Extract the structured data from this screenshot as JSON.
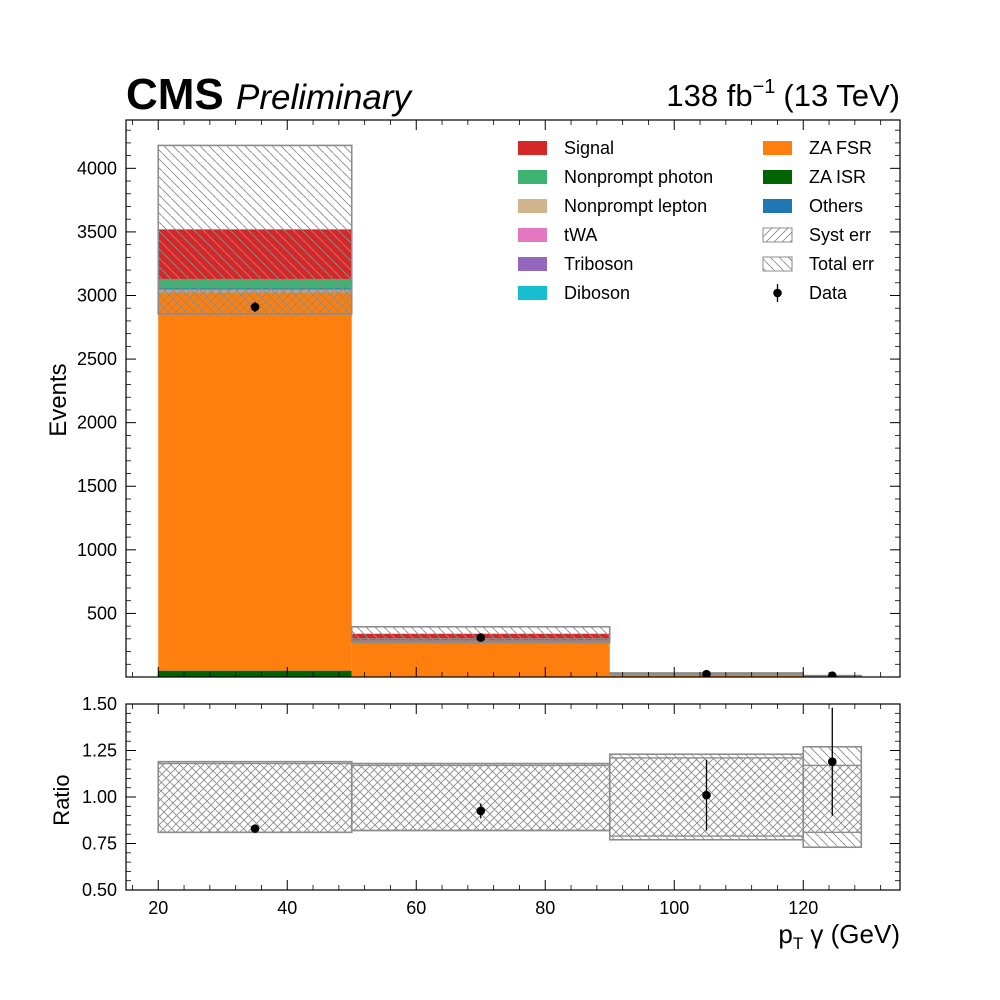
{
  "header": {
    "experiment": "CMS",
    "status": "Preliminary",
    "lumi_value": "138 fb",
    "lumi_exp": "−1",
    "energy": "(13 TeV)"
  },
  "chart_data": {
    "type": "bar",
    "stacked": true,
    "bins": [
      [
        20,
        50
      ],
      [
        50,
        90
      ],
      [
        90,
        120
      ],
      [
        120,
        129
      ]
    ],
    "xlabel_main": "p",
    "xlabel_sub": "T",
    "xlabel_rest": " γ (GeV)",
    "ylabel": "Events",
    "ylabel_ratio": "Ratio",
    "xlim": [
      15,
      135
    ],
    "ylim": [
      0,
      4380
    ],
    "ylim_ratio": [
      0.5,
      1.5
    ],
    "xticks": [
      20,
      40,
      60,
      80,
      100,
      120
    ],
    "yticks": [
      500,
      1000,
      1500,
      2000,
      2500,
      3000,
      3500,
      4000
    ],
    "yticks_ratio": [
      "0.50",
      "0.75",
      "1.00",
      "1.25",
      "1.50"
    ],
    "series": [
      {
        "name": "ZA ISR",
        "color": "#006400",
        "values": [
          50,
          2,
          0,
          0
        ]
      },
      {
        "name": "ZA FSR",
        "color": "#ff7f0e",
        "values": [
          2975,
          272,
          25,
          8
        ]
      },
      {
        "name": "Diboson",
        "color": "#17becf",
        "values": [
          5,
          1,
          0,
          0
        ]
      },
      {
        "name": "Triboson",
        "color": "#9467bd",
        "values": [
          3,
          1,
          0,
          0
        ]
      },
      {
        "name": "tWA",
        "color": "#e377c2",
        "values": [
          5,
          1,
          0,
          0
        ]
      },
      {
        "name": "Nonprompt lepton",
        "color": "#d2b48c",
        "values": [
          12,
          2,
          0,
          0
        ]
      },
      {
        "name": "Others",
        "color": "#1f77b4",
        "values": [
          5,
          1,
          0,
          0
        ]
      },
      {
        "name": "Nonprompt photon",
        "color": "#3cb371",
        "values": [
          75,
          8,
          1,
          0
        ]
      },
      {
        "name": "Signal",
        "color": "#d62728",
        "values": [
          390,
          52,
          3,
          1
        ]
      }
    ],
    "syst_band": [
      [
        2855,
        3045
      ],
      [
        270,
        300
      ],
      [
        26,
        30
      ],
      [
        8,
        10
      ]
    ],
    "total_band": [
      [
        2855,
        4180
      ],
      [
        280,
        395
      ],
      [
        22,
        32
      ],
      [
        7,
        11
      ]
    ],
    "data": {
      "x": [
        35,
        70,
        105,
        124.5
      ],
      "y": [
        2910,
        310,
        22,
        10
      ],
      "err": [
        40,
        15,
        5,
        3
      ]
    },
    "ratio": {
      "x": [
        35,
        70,
        105,
        124.5
      ],
      "y": [
        0.83,
        0.925,
        1.01,
        1.19
      ],
      "err": [
        0.015,
        0.04,
        0.19,
        0.29
      ],
      "syst_band": [
        [
          0.81,
          1.18
        ],
        [
          0.82,
          1.17
        ],
        [
          0.79,
          1.21
        ],
        [
          0.81,
          1.17
        ]
      ],
      "total_band": [
        [
          0.81,
          1.19
        ],
        [
          0.82,
          1.18
        ],
        [
          0.77,
          1.23
        ],
        [
          0.73,
          1.27
        ]
      ]
    },
    "legend": {
      "placement": "top-right",
      "col1": [
        {
          "label": "Signal",
          "kind": "fill",
          "color": "#d62728"
        },
        {
          "label": "Nonprompt photon",
          "kind": "fill",
          "color": "#3cb371"
        },
        {
          "label": "Nonprompt lepton",
          "kind": "fill",
          "color": "#d2b48c"
        },
        {
          "label": "tWA",
          "kind": "fill",
          "color": "#e377c2"
        },
        {
          "label": "Triboson",
          "kind": "fill",
          "color": "#9467bd"
        },
        {
          "label": "Diboson",
          "kind": "fill",
          "color": "#17becf"
        }
      ],
      "col2": [
        {
          "label": "ZA FSR",
          "kind": "fill",
          "color": "#ff7f0e"
        },
        {
          "label": "ZA ISR",
          "kind": "fill",
          "color": "#006400"
        },
        {
          "label": "Others",
          "kind": "fill",
          "color": "#1f77b4"
        },
        {
          "label": "Syst err",
          "kind": "hatch-syst"
        },
        {
          "label": "Total err",
          "kind": "hatch-total"
        },
        {
          "label": "Data",
          "kind": "marker"
        }
      ]
    }
  }
}
